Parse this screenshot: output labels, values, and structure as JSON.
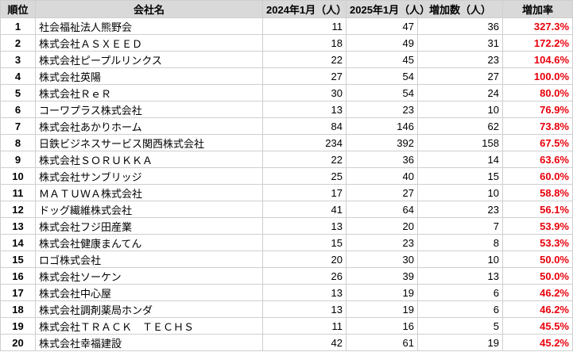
{
  "table": {
    "headers": [
      "順位",
      "会社名",
      "2024年1月（人）",
      "2025年1月（人）",
      "増加数（人）",
      "増加率"
    ],
    "rows": [
      [
        "1",
        "社会福祉法人熊野会",
        "11",
        "47",
        "36",
        "327.3%"
      ],
      [
        "2",
        "株式会社ＡＳＸＥＥＤ",
        "18",
        "49",
        "31",
        "172.2%"
      ],
      [
        "3",
        "株式会社ピープルリンクス",
        "22",
        "45",
        "23",
        "104.6%"
      ],
      [
        "4",
        "株式会社英陽",
        "27",
        "54",
        "27",
        "100.0%"
      ],
      [
        "5",
        "株式会社ＲｅＲ",
        "30",
        "54",
        "24",
        "80.0%"
      ],
      [
        "6",
        "コーワプラス株式会社",
        "13",
        "23",
        "10",
        "76.9%"
      ],
      [
        "7",
        "株式会社あかりホーム",
        "84",
        "146",
        "62",
        "73.8%"
      ],
      [
        "8",
        "日鉄ビジネスサービス関西株式会社",
        "234",
        "392",
        "158",
        "67.5%"
      ],
      [
        "9",
        "株式会社ＳＯＲＵＫＫＡ",
        "22",
        "36",
        "14",
        "63.6%"
      ],
      [
        "10",
        "株式会社サンブリッジ",
        "25",
        "40",
        "15",
        "60.0%"
      ],
      [
        "11",
        "ＭＡＴＵＷＡ株式会社",
        "17",
        "27",
        "10",
        "58.8%"
      ],
      [
        "12",
        "ドッグ繊維株式会社",
        "41",
        "64",
        "23",
        "56.1%"
      ],
      [
        "13",
        "株式会社フジ田産業",
        "13",
        "20",
        "7",
        "53.9%"
      ],
      [
        "14",
        "株式会社健康まんてん",
        "15",
        "23",
        "8",
        "53.3%"
      ],
      [
        "15",
        "ロゴ株式会社",
        "20",
        "30",
        "10",
        "50.0%"
      ],
      [
        "16",
        "株式会社ソーケン",
        "26",
        "39",
        "13",
        "50.0%"
      ],
      [
        "17",
        "株式会社中心屋",
        "13",
        "19",
        "6",
        "46.2%"
      ],
      [
        "18",
        "株式会社調剤薬局ホンダ",
        "13",
        "19",
        "6",
        "46.2%"
      ],
      [
        "19",
        "株式会社ＴＲＡＣＫ　ＴＥＣＨＳ",
        "11",
        "16",
        "5",
        "45.5%"
      ],
      [
        "20",
        "株式会社幸福建設",
        "42",
        "61",
        "19",
        "45.2%"
      ]
    ]
  }
}
